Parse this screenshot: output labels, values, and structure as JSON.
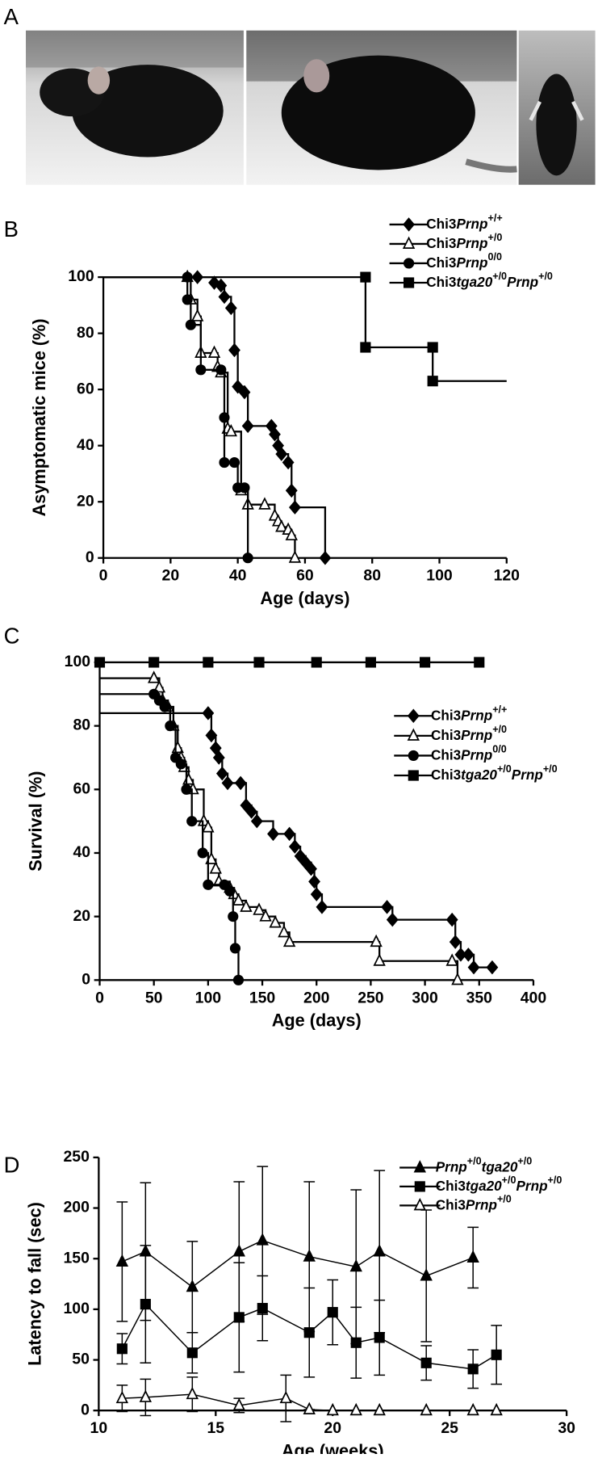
{
  "photos": {
    "label": "A"
  },
  "chart_data": [
    {
      "panel": "B",
      "type": "step",
      "xlabel": "Age (days)",
      "ylabel": "Asymptomatic mice (%)",
      "xlim": [
        0,
        120
      ],
      "ylim": [
        0,
        100
      ],
      "xticks": [
        0,
        20,
        40,
        60,
        80,
        100,
        120
      ],
      "yticks": [
        0,
        20,
        40,
        60,
        80,
        100
      ],
      "legend": "upper right",
      "series": [
        {
          "name": "Chi3Prnp+/+",
          "color": "#000000",
          "marker": "diamond",
          "x": [
            28,
            33,
            35,
            36,
            38,
            39,
            40,
            42,
            43,
            50,
            51,
            52,
            53,
            55,
            56,
            57,
            66
          ],
          "values": [
            100,
            98,
            97,
            93,
            89,
            74,
            61,
            59,
            47,
            47,
            44,
            40,
            37,
            34,
            24,
            18,
            0
          ]
        },
        {
          "name": "Chi3Prnp+/0",
          "color": "#000000",
          "marker": "triangle-open",
          "x": [
            25,
            26,
            28,
            29,
            33,
            34,
            35,
            37,
            38,
            41,
            43,
            48,
            51,
            52,
            53,
            55,
            56,
            57
          ],
          "values": [
            100,
            92,
            86,
            73,
            73,
            68,
            66,
            46,
            45,
            24,
            19,
            19,
            15,
            13,
            11,
            10,
            8,
            0
          ]
        },
        {
          "name": "Chi3Prnp0/0",
          "color": "#000000",
          "marker": "circle",
          "x": [
            25,
            25,
            26,
            29,
            35,
            36,
            36,
            39,
            40,
            42,
            43
          ],
          "values": [
            100,
            92,
            83,
            67,
            67,
            50,
            34,
            34,
            25,
            25,
            0
          ]
        },
        {
          "name": "Chi3tga20+/0Prnp+/0",
          "color": "#000000",
          "marker": "square",
          "x": [
            78,
            78,
            98,
            98
          ],
          "values": [
            100,
            75,
            75,
            63
          ],
          "x_end": 120
        }
      ]
    },
    {
      "panel": "C",
      "type": "step",
      "xlabel": "Age (days)",
      "ylabel": "Survival (%)",
      "xlim": [
        0,
        400
      ],
      "ylim": [
        0,
        100
      ],
      "xticks": [
        0,
        50,
        100,
        150,
        200,
        250,
        300,
        350,
        400
      ],
      "yticks": [
        0,
        20,
        40,
        60,
        80,
        100
      ],
      "legend": "right",
      "series": [
        {
          "name": "Chi3Prnp+/+",
          "color": "#000000",
          "marker": "diamond",
          "x": [
            100,
            103,
            107,
            110,
            113,
            118,
            130,
            135,
            140,
            145,
            160,
            175,
            180,
            185,
            190,
            195,
            198,
            200,
            205,
            265,
            270,
            325,
            328,
            333,
            340,
            345,
            362
          ],
          "values": [
            84,
            77,
            73,
            70,
            65,
            62,
            62,
            55,
            53,
            50,
            46,
            46,
            42,
            39,
            37,
            35,
            31,
            27,
            23,
            23,
            19,
            19,
            12,
            8,
            8,
            4,
            4
          ]
        },
        {
          "name": "Chi3Prnp+/0",
          "color": "#000000",
          "marker": "triangle-open",
          "x": [
            50,
            55,
            58,
            63,
            68,
            72,
            75,
            78,
            82,
            86,
            96,
            100,
            103,
            107,
            110,
            120,
            124,
            128,
            135,
            147,
            153,
            162,
            170,
            175,
            255,
            258,
            325,
            330
          ],
          "values": [
            95,
            92,
            88,
            86,
            80,
            73,
            70,
            67,
            63,
            60,
            50,
            48,
            38,
            35,
            31,
            29,
            27,
            25,
            23,
            22,
            20,
            18,
            15,
            12,
            12,
            6,
            6,
            0
          ]
        },
        {
          "name": "Chi3Prnp0/0",
          "color": "#000000",
          "marker": "circle",
          "x": [
            50,
            55,
            60,
            65,
            70,
            75,
            80,
            85,
            95,
            100,
            115,
            120,
            123,
            125,
            128
          ],
          "values": [
            90,
            88,
            86,
            80,
            70,
            68,
            60,
            50,
            40,
            30,
            30,
            28,
            20,
            10,
            0
          ]
        },
        {
          "name": "Chi3tga20+/0Prnp+/0",
          "color": "#000000",
          "marker": "square",
          "x": [
            0,
            50,
            100,
            147,
            200,
            250,
            300,
            350
          ],
          "values": [
            100,
            100,
            100,
            100,
            100,
            100,
            100,
            100
          ]
        }
      ]
    },
    {
      "panel": "D",
      "type": "line",
      "xlabel": "Age (weeks)",
      "ylabel": "Latency to fall (sec)",
      "xlim": [
        10,
        30
      ],
      "ylim": [
        0,
        250
      ],
      "xticks": [
        10,
        15,
        20,
        25,
        30
      ],
      "yticks": [
        0,
        50,
        100,
        150,
        200,
        250
      ],
      "legend": "upper right",
      "series": [
        {
          "name": "Prnp+/0tga20+/0",
          "color": "#000000",
          "marker": "triangle",
          "x": [
            11,
            12,
            14,
            16,
            17,
            19,
            21,
            22,
            24,
            26
          ],
          "values": [
            147,
            157,
            122,
            157,
            168,
            152,
            142,
            157,
            133,
            151
          ],
          "errors": [
            59,
            68,
            45,
            69,
            73,
            74,
            76,
            80,
            65,
            30
          ]
        },
        {
          "name": "Chi3tga20+/0Prnp+/0",
          "color": "#000000",
          "marker": "square",
          "x": [
            11,
            12,
            14,
            16,
            17,
            19,
            20,
            21,
            22,
            24,
            26,
            27
          ],
          "values": [
            61,
            105,
            57,
            92,
            101,
            77,
            97,
            67,
            72,
            47,
            41,
            55
          ],
          "errors": [
            15,
            58,
            20,
            54,
            32,
            44,
            32,
            35,
            37,
            17,
            19,
            29
          ]
        },
        {
          "name": "Chi3Prnp+/0",
          "color": "#000000",
          "marker": "triangle-open",
          "x": [
            11,
            12,
            14,
            16,
            18,
            19,
            20,
            21,
            22,
            24,
            26,
            27
          ],
          "values": [
            12,
            13,
            16,
            5,
            12,
            1,
            0,
            0,
            0,
            0,
            0,
            0
          ],
          "errors": [
            13,
            18,
            17,
            7,
            23,
            0,
            0,
            0,
            0,
            0,
            0,
            0
          ]
        }
      ]
    }
  ]
}
